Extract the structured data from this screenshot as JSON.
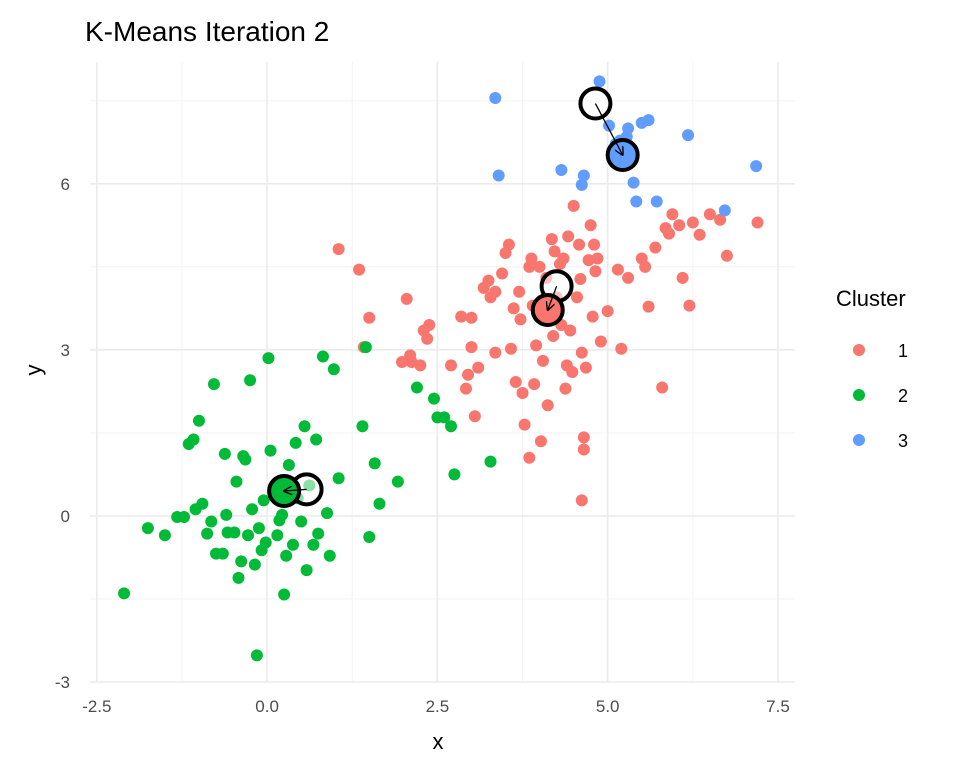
{
  "chart_data": {
    "type": "scatter",
    "title": "K-Means Iteration 2",
    "xlabel": "x",
    "ylabel": "y",
    "xlim": [
      -2.6,
      7.75
    ],
    "ylim": [
      -3.0,
      8.2
    ],
    "x_ticks": [
      -2.5,
      0.0,
      2.5,
      5.0,
      7.5
    ],
    "x_tick_labels": [
      "-2.5",
      "0.0",
      "2.5",
      "5.0",
      "7.5"
    ],
    "y_ticks": [
      -3,
      0,
      3,
      6
    ],
    "y_tick_labels": [
      "-3",
      "0",
      "3",
      "6"
    ],
    "grid": true,
    "legend": {
      "title": "Cluster",
      "placement": "right"
    },
    "series": [
      {
        "name": "1",
        "color": "#F8766D",
        "points": [
          [
            1.05,
            4.82
          ],
          [
            1.35,
            4.45
          ],
          [
            1.5,
            3.58
          ],
          [
            1.42,
            3.05
          ],
          [
            2.05,
            3.92
          ],
          [
            2.1,
            2.9
          ],
          [
            2.12,
            2.78
          ],
          [
            1.98,
            2.78
          ],
          [
            2.25,
            2.72
          ],
          [
            2.3,
            3.35
          ],
          [
            2.35,
            3.2
          ],
          [
            2.38,
            3.45
          ],
          [
            2.7,
            2.72
          ],
          [
            2.85,
            3.6
          ],
          [
            2.92,
            2.3
          ],
          [
            3.0,
            3.05
          ],
          [
            3.0,
            3.58
          ],
          [
            3.05,
            1.8
          ],
          [
            3.1,
            2.68
          ],
          [
            3.18,
            4.12
          ],
          [
            3.25,
            4.25
          ],
          [
            3.28,
            3.95
          ],
          [
            3.35,
            2.95
          ],
          [
            3.45,
            4.38
          ],
          [
            3.5,
            4.75
          ],
          [
            3.55,
            4.9
          ],
          [
            3.58,
            3.02
          ],
          [
            3.62,
            3.75
          ],
          [
            3.65,
            2.42
          ],
          [
            3.7,
            4.05
          ],
          [
            3.72,
            3.55
          ],
          [
            3.75,
            2.22
          ],
          [
            3.78,
            1.65
          ],
          [
            3.85,
            4.5
          ],
          [
            3.85,
            1.05
          ],
          [
            3.9,
            3.8
          ],
          [
            3.92,
            2.38
          ],
          [
            3.95,
            3.08
          ],
          [
            4.0,
            4.5
          ],
          [
            4.02,
            1.35
          ],
          [
            4.05,
            2.8
          ],
          [
            4.1,
            4.3
          ],
          [
            4.12,
            2.0
          ],
          [
            4.15,
            3.7
          ],
          [
            4.18,
            5.0
          ],
          [
            4.2,
            3.25
          ],
          [
            4.22,
            4.78
          ],
          [
            4.25,
            3.95
          ],
          [
            4.3,
            4.55
          ],
          [
            4.32,
            3.45
          ],
          [
            4.35,
            4.65
          ],
          [
            4.38,
            2.3
          ],
          [
            4.4,
            2.72
          ],
          [
            4.42,
            5.05
          ],
          [
            4.45,
            3.35
          ],
          [
            4.48,
            2.6
          ],
          [
            4.5,
            5.6
          ],
          [
            4.55,
            3.95
          ],
          [
            4.58,
            4.9
          ],
          [
            4.6,
            4.28
          ],
          [
            4.62,
            2.95
          ],
          [
            4.65,
            1.42
          ],
          [
            4.65,
            1.2
          ],
          [
            4.68,
            2.68
          ],
          [
            4.72,
            4.62
          ],
          [
            4.75,
            5.25
          ],
          [
            4.78,
            3.6
          ],
          [
            4.8,
            4.9
          ],
          [
            4.82,
            4.42
          ],
          [
            4.85,
            4.65
          ],
          [
            4.9,
            3.15
          ],
          [
            5.0,
            3.7
          ],
          [
            5.15,
            4.45
          ],
          [
            5.2,
            3.02
          ],
          [
            5.3,
            4.3
          ],
          [
            5.5,
            4.65
          ],
          [
            5.55,
            4.5
          ],
          [
            5.6,
            3.78
          ],
          [
            5.7,
            4.85
          ],
          [
            5.8,
            2.32
          ],
          [
            5.85,
            5.2
          ],
          [
            5.9,
            5.1
          ],
          [
            5.95,
            5.45
          ],
          [
            6.05,
            5.25
          ],
          [
            6.1,
            4.3
          ],
          [
            6.2,
            3.8
          ],
          [
            6.25,
            5.3
          ],
          [
            6.35,
            5.08
          ],
          [
            6.5,
            5.45
          ],
          [
            6.65,
            5.35
          ],
          [
            6.75,
            4.7
          ],
          [
            7.2,
            5.3
          ],
          [
            4.62,
            0.28
          ],
          [
            3.88,
            4.65
          ],
          [
            3.35,
            4.05
          ],
          [
            2.95,
            2.55
          ]
        ]
      },
      {
        "name": "2",
        "color": "#00BA38",
        "points": [
          [
            -2.1,
            -1.4
          ],
          [
            -1.75,
            -0.22
          ],
          [
            -1.5,
            -0.35
          ],
          [
            -1.32,
            -0.02
          ],
          [
            -1.22,
            -0.02
          ],
          [
            -1.15,
            1.3
          ],
          [
            -1.08,
            1.38
          ],
          [
            -1.05,
            0.12
          ],
          [
            -1.0,
            1.72
          ],
          [
            -0.95,
            0.22
          ],
          [
            -0.88,
            -0.32
          ],
          [
            -0.82,
            -0.1
          ],
          [
            -0.78,
            2.38
          ],
          [
            -0.75,
            -0.68
          ],
          [
            -0.65,
            -0.68
          ],
          [
            -0.62,
            1.12
          ],
          [
            -0.6,
            0.02
          ],
          [
            -0.58,
            -0.3
          ],
          [
            -0.48,
            -0.3
          ],
          [
            -0.45,
            0.62
          ],
          [
            -0.42,
            -1.12
          ],
          [
            -0.38,
            -0.82
          ],
          [
            -0.35,
            1.08
          ],
          [
            -0.32,
            1.02
          ],
          [
            -0.28,
            -0.35
          ],
          [
            -0.25,
            2.45
          ],
          [
            -0.22,
            0.12
          ],
          [
            -0.18,
            -0.88
          ],
          [
            -0.15,
            -2.52
          ],
          [
            -0.12,
            -0.22
          ],
          [
            -0.08,
            -0.62
          ],
          [
            -0.05,
            0.28
          ],
          [
            -0.02,
            -0.48
          ],
          [
            0.02,
            2.85
          ],
          [
            0.05,
            1.18
          ],
          [
            0.1,
            0.52
          ],
          [
            0.15,
            -0.35
          ],
          [
            0.18,
            -0.08
          ],
          [
            0.22,
            0.02
          ],
          [
            0.25,
            -1.42
          ],
          [
            0.28,
            -0.72
          ],
          [
            0.32,
            0.92
          ],
          [
            0.38,
            -0.52
          ],
          [
            0.42,
            1.32
          ],
          [
            0.45,
            0.32
          ],
          [
            0.5,
            -0.1
          ],
          [
            0.55,
            1.62
          ],
          [
            0.58,
            -0.98
          ],
          [
            0.62,
            0.55
          ],
          [
            0.68,
            -0.52
          ],
          [
            0.72,
            1.38
          ],
          [
            0.75,
            -0.32
          ],
          [
            0.82,
            2.88
          ],
          [
            0.88,
            0.05
          ],
          [
            0.92,
            -0.72
          ],
          [
            0.98,
            2.65
          ],
          [
            1.05,
            0.68
          ],
          [
            1.4,
            1.62
          ],
          [
            1.45,
            3.05
          ],
          [
            1.5,
            -0.38
          ],
          [
            1.58,
            0.95
          ],
          [
            1.65,
            0.22
          ],
          [
            1.92,
            0.62
          ],
          [
            2.2,
            2.32
          ],
          [
            2.45,
            2.12
          ],
          [
            2.5,
            1.78
          ],
          [
            2.6,
            1.78
          ],
          [
            2.7,
            1.62
          ],
          [
            2.75,
            0.75
          ],
          [
            3.28,
            0.98
          ]
        ]
      },
      {
        "name": "3",
        "color": "#619CFF",
        "points": [
          [
            3.35,
            7.55
          ],
          [
            3.4,
            6.15
          ],
          [
            4.32,
            6.25
          ],
          [
            4.62,
            5.98
          ],
          [
            4.65,
            6.15
          ],
          [
            4.88,
            7.85
          ],
          [
            5.02,
            7.05
          ],
          [
            5.12,
            6.72
          ],
          [
            5.18,
            6.78
          ],
          [
            5.22,
            6.48
          ],
          [
            5.28,
            6.85
          ],
          [
            5.3,
            7.0
          ],
          [
            5.38,
            6.02
          ],
          [
            5.42,
            5.68
          ],
          [
            5.5,
            7.1
          ],
          [
            5.6,
            7.15
          ],
          [
            5.72,
            5.68
          ],
          [
            6.18,
            6.88
          ],
          [
            6.72,
            5.52
          ],
          [
            7.18,
            6.32
          ]
        ]
      }
    ],
    "centroids": [
      {
        "cluster": "1",
        "previous": [
          4.25,
          4.15
        ],
        "current": [
          4.12,
          3.72
        ]
      },
      {
        "cluster": "2",
        "previous": [
          0.58,
          0.48
        ],
        "current": [
          0.25,
          0.45
        ]
      },
      {
        "cluster": "3",
        "previous": [
          4.82,
          7.45
        ],
        "current": [
          5.22,
          6.52
        ]
      }
    ]
  }
}
